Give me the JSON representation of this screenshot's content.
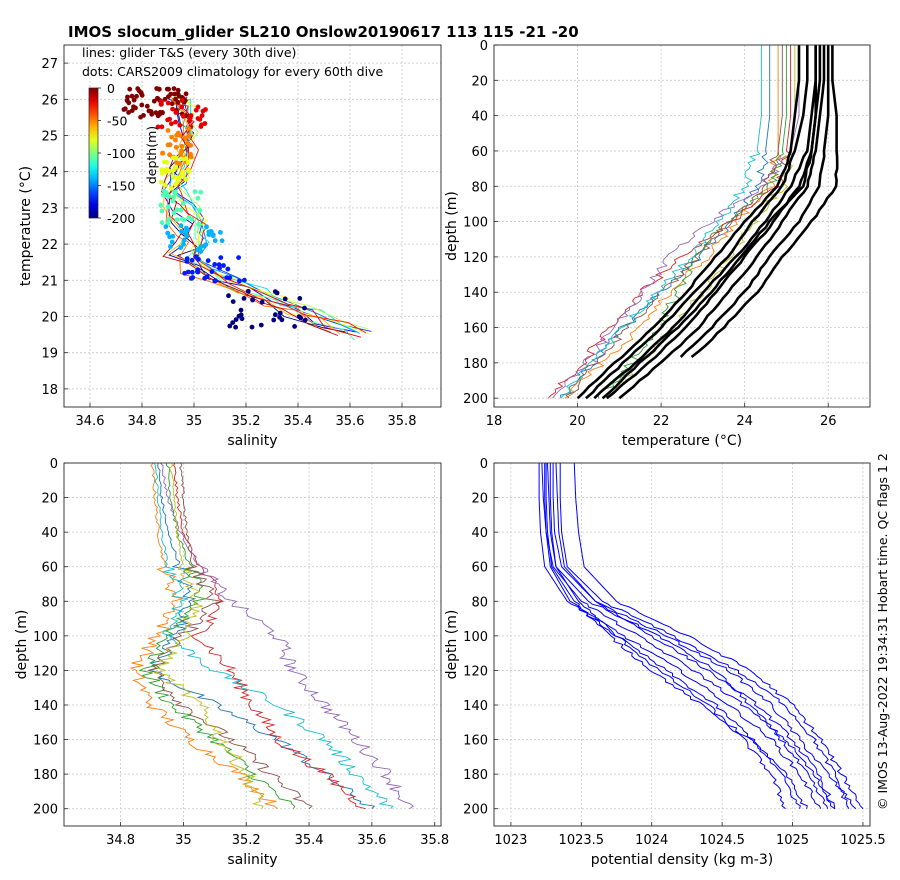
{
  "figure": {
    "title": "IMOS slocum_glider SL210 Onslow20190617 113  115  -21  -20",
    "side_note": "© IMOS 13-Aug-2022 19:34:31 Hobart time. QC flags 1  2"
  },
  "chart_data": [
    {
      "id": "ts",
      "type": "scatter",
      "xlabel": "salinity",
      "ylabel": "temperature (°C)",
      "xlim": [
        34.5,
        35.95
      ],
      "ylim": [
        17.5,
        27.5
      ],
      "xticks": [
        34.6,
        34.8,
        35,
        35.2,
        35.4,
        35.6,
        35.8
      ],
      "xtick_labels": [
        "34.6",
        "34.8",
        "35",
        "35.2",
        "35.4",
        "35.6",
        "35.8"
      ],
      "yticks": [
        18,
        19,
        20,
        21,
        22,
        23,
        24,
        25,
        26,
        27
      ],
      "ytick_labels": [
        "18",
        "19",
        "20",
        "21",
        "22",
        "23",
        "24",
        "25",
        "26",
        "27"
      ],
      "grid": true,
      "annotations": [
        "lines: glider T&S (every 30th dive)",
        "dots: CARS2009 climatology for every 60th dive"
      ],
      "colorbar": {
        "label": "depth(m)",
        "ticks": [
          0,
          -50,
          -100,
          -150,
          -200
        ],
        "tick_labels": [
          "0",
          "-50",
          "-100",
          "-150",
          "-200"
        ],
        "colormap": "jet"
      },
      "line_series_depth": [
        -200,
        -180,
        -165,
        -150,
        -130,
        -110,
        -90,
        -75,
        -60,
        -45,
        -30,
        -20,
        -10
      ],
      "salinity_ts_anchors": [
        [
          0,
          34.93,
          26.0
        ],
        [
          10,
          34.95,
          25.9
        ],
        [
          20,
          34.97,
          25.6
        ],
        [
          30,
          34.98,
          25.3
        ],
        [
          40,
          34.98,
          25.0
        ],
        [
          50,
          34.97,
          24.6
        ],
        [
          60,
          34.95,
          24.2
        ],
        [
          70,
          34.93,
          23.8
        ],
        [
          80,
          34.92,
          23.4
        ],
        [
          90,
          34.94,
          23.0
        ],
        [
          100,
          34.97,
          22.6
        ],
        [
          110,
          34.99,
          22.3
        ],
        [
          120,
          35.0,
          22.0
        ],
        [
          130,
          34.95,
          21.7
        ],
        [
          140,
          35.02,
          21.3
        ],
        [
          150,
          35.1,
          21.0
        ],
        [
          160,
          35.2,
          20.7
        ],
        [
          170,
          35.3,
          20.4
        ],
        [
          180,
          35.4,
          20.1
        ],
        [
          190,
          35.5,
          19.8
        ],
        [
          200,
          35.6,
          19.5
        ]
      ],
      "dots_clusters": [
        {
          "depth": 0,
          "s_center": 34.85,
          "t_center": 25.9,
          "s_spread": 0.12,
          "t_spread": 0.4,
          "n": 60
        },
        {
          "depth": -20,
          "s_center": 34.95,
          "t_center": 25.6,
          "s_spread": 0.1,
          "t_spread": 0.4,
          "n": 30
        },
        {
          "depth": -50,
          "s_center": 34.93,
          "t_center": 24.7,
          "s_spread": 0.06,
          "t_spread": 0.5,
          "n": 30
        },
        {
          "depth": -80,
          "s_center": 34.93,
          "t_center": 23.9,
          "s_spread": 0.06,
          "t_spread": 0.5,
          "n": 30
        },
        {
          "depth": -110,
          "s_center": 34.95,
          "t_center": 23.0,
          "s_spread": 0.08,
          "t_spread": 0.5,
          "n": 30
        },
        {
          "depth": -140,
          "s_center": 35.0,
          "t_center": 22.2,
          "s_spread": 0.12,
          "t_spread": 0.4,
          "n": 30
        },
        {
          "depth": -170,
          "s_center": 35.08,
          "t_center": 21.3,
          "s_spread": 0.12,
          "t_spread": 0.4,
          "n": 30
        },
        {
          "depth": -200,
          "s_center": 35.28,
          "t_center": 20.2,
          "s_spread": 0.15,
          "t_spread": 0.5,
          "n": 30
        }
      ]
    },
    {
      "id": "temp",
      "type": "line",
      "xlabel": "temperature (°C)",
      "ylabel": "depth (m)",
      "xlim": [
        18,
        27
      ],
      "ylim": [
        0,
        205
      ],
      "y_reversed": true,
      "xticks": [
        18,
        20,
        22,
        24,
        26
      ],
      "xtick_labels": [
        "18",
        "20",
        "22",
        "24",
        "26"
      ],
      "yticks": [
        0,
        20,
        40,
        60,
        80,
        100,
        120,
        140,
        160,
        180,
        200
      ],
      "ytick_labels": [
        "0",
        "20",
        "40",
        "60",
        "80",
        "100",
        "120",
        "140",
        "160",
        "180",
        "200"
      ],
      "grid": true,
      "depth_levels": [
        0,
        20,
        40,
        60,
        80,
        100,
        120,
        140,
        160,
        180,
        200
      ],
      "climatology_series": [
        {
          "values": [
            25.3,
            25.3,
            25.2,
            25.1,
            24.8,
            24.0,
            23.3,
            22.6,
            21.8,
            20.9,
            20.0
          ]
        },
        {
          "values": [
            25.5,
            25.5,
            25.4,
            25.2,
            24.9,
            24.2,
            23.6,
            22.8,
            22.0,
            21.1,
            20.2
          ]
        },
        {
          "values": [
            25.7,
            25.7,
            25.6,
            25.5,
            25.1,
            24.5,
            23.8,
            23.0,
            22.3,
            21.4,
            20.4
          ]
        },
        {
          "values": [
            25.8,
            25.8,
            25.7,
            25.6,
            25.3,
            24.7,
            24.0,
            23.3,
            22.6,
            21.7,
            20.7
          ]
        },
        {
          "values": [
            25.9,
            25.9,
            25.8,
            25.7,
            25.5,
            24.9,
            24.3,
            23.6,
            22.9,
            22.0,
            21.0
          ]
        },
        {
          "values": [
            26.0,
            26.0,
            26.0,
            25.9,
            25.8,
            25.3,
            24.6,
            24.0,
            23.2,
            22.3,
            null
          ]
        },
        {
          "values": [
            26.1,
            26.1,
            26.2,
            26.2,
            26.2,
            25.6,
            24.9,
            24.3,
            23.5,
            22.6,
            null
          ]
        },
        {
          "values": [
            25.7,
            25.7,
            25.7,
            25.6,
            25.4,
            24.6,
            23.9,
            23.2,
            22.4,
            21.5,
            20.6
          ]
        }
      ],
      "glider_series": [
        {
          "color": "#1f77b4",
          "values": [
            24.6,
            24.6,
            24.6,
            24.5,
            24.3,
            23.7,
            22.9,
            22.0,
            21.1,
            20.4,
            19.6
          ]
        },
        {
          "color": "#ff7f0e",
          "values": [
            24.8,
            24.8,
            24.8,
            24.8,
            24.6,
            23.8,
            23.1,
            22.2,
            21.5,
            20.6,
            19.7
          ]
        },
        {
          "color": "#2ca02c",
          "values": [
            25.0,
            25.0,
            25.0,
            24.9,
            24.6,
            23.6,
            22.8,
            22.4,
            21.9,
            21.3,
            20.5
          ]
        },
        {
          "color": "#d62728",
          "values": [
            25.1,
            25.1,
            25.1,
            25.0,
            24.8,
            23.7,
            22.5,
            21.5,
            20.8,
            20.1,
            19.3
          ]
        },
        {
          "color": "#9467bd",
          "values": [
            25.3,
            25.3,
            25.3,
            25.1,
            24.4,
            23.2,
            22.2,
            21.6,
            20.9,
            20.2,
            19.4
          ]
        },
        {
          "color": "#8c564b",
          "values": [
            24.9,
            24.9,
            24.9,
            24.8,
            24.5,
            23.6,
            22.9,
            22.0,
            21.2,
            20.4,
            19.8
          ]
        },
        {
          "color": "#17becf",
          "values": [
            24.4,
            24.4,
            24.4,
            24.3,
            24.0,
            23.4,
            22.7,
            21.9,
            21.1,
            20.3,
            19.6
          ]
        },
        {
          "color": "#bcbd22",
          "values": [
            25.2,
            25.2,
            25.2,
            25.1,
            24.9,
            24.2,
            23.6,
            23.0,
            22.3,
            21.5,
            20.7
          ]
        }
      ]
    },
    {
      "id": "salt",
      "type": "line",
      "xlabel": "salinity",
      "ylabel": "depth (m)",
      "xlim": [
        34.62,
        35.82
      ],
      "ylim": [
        0,
        210
      ],
      "y_reversed": true,
      "xticks": [
        34.8,
        35,
        35.2,
        35.4,
        35.6,
        35.8
      ],
      "xtick_labels": [
        "34.8",
        "35",
        "35.2",
        "35.4",
        "35.6",
        "35.8"
      ],
      "yticks": [
        0,
        20,
        40,
        60,
        80,
        100,
        120,
        140,
        160,
        180,
        200
      ],
      "ytick_labels": [
        "0",
        "20",
        "40",
        "60",
        "80",
        "100",
        "120",
        "140",
        "160",
        "180",
        "200"
      ],
      "grid": true,
      "depth_levels": [
        0,
        20,
        40,
        60,
        80,
        100,
        120,
        140,
        160,
        180,
        200
      ],
      "glider_series": [
        {
          "color": "#1f77b4",
          "values": [
            34.92,
            34.93,
            34.95,
            34.99,
            35.02,
            34.98,
            34.9,
            35.1,
            35.3,
            35.45,
            35.6
          ]
        },
        {
          "color": "#ff7f0e",
          "values": [
            34.9,
            34.91,
            34.92,
            34.94,
            34.98,
            34.92,
            34.84,
            34.9,
            35.02,
            35.18,
            35.3
          ]
        },
        {
          "color": "#2ca02c",
          "values": [
            34.95,
            34.96,
            34.98,
            35.02,
            35.05,
            34.95,
            34.88,
            34.96,
            35.1,
            35.22,
            35.35
          ]
        },
        {
          "color": "#d62728",
          "values": [
            34.97,
            34.98,
            35.0,
            35.05,
            35.12,
            35.05,
            35.15,
            35.22,
            35.3,
            35.45,
            35.58
          ]
        },
        {
          "color": "#9467bd",
          "values": [
            34.93,
            34.95,
            34.99,
            35.05,
            35.15,
            35.3,
            35.35,
            35.45,
            35.55,
            35.65,
            35.72
          ]
        },
        {
          "color": "#8c564b",
          "values": [
            34.99,
            35.0,
            35.01,
            35.03,
            35.1,
            35.0,
            34.9,
            35.0,
            35.15,
            35.28,
            35.4
          ]
        },
        {
          "color": "#17becf",
          "values": [
            34.91,
            34.92,
            34.93,
            34.95,
            35.0,
            34.95,
            35.1,
            35.3,
            35.45,
            35.55,
            35.66
          ]
        },
        {
          "color": "#bcbd22",
          "values": [
            34.96,
            34.97,
            34.98,
            35.0,
            35.05,
            35.0,
            34.92,
            35.05,
            35.12,
            35.2,
            35.25
          ]
        }
      ]
    },
    {
      "id": "dens",
      "type": "line",
      "xlabel": "potential density (kg m-3)",
      "ylabel": "depth (m)",
      "xlim": [
        1022.88,
        1025.55
      ],
      "ylim": [
        0,
        210
      ],
      "y_reversed": true,
      "xticks": [
        1023,
        1023.5,
        1024,
        1024.5,
        1025,
        1025.5
      ],
      "xtick_labels": [
        "1023",
        "1023.5",
        "1024",
        "1024.5",
        "1025",
        "1025.5"
      ],
      "yticks": [
        0,
        20,
        40,
        60,
        80,
        100,
        120,
        140,
        160,
        180,
        200
      ],
      "ytick_labels": [
        "0",
        "20",
        "40",
        "60",
        "80",
        "100",
        "120",
        "140",
        "160",
        "180",
        "200"
      ],
      "grid": true,
      "line_color": "#0000ff",
      "depth_levels": [
        0,
        20,
        40,
        60,
        80,
        100,
        120,
        140,
        160,
        180,
        200
      ],
      "glider_series": [
        {
          "values": [
            1023.2,
            1023.2,
            1023.21,
            1023.24,
            1023.4,
            1023.8,
            1024.2,
            1024.55,
            1024.85,
            1025.05,
            1025.2
          ]
        },
        {
          "values": [
            1023.22,
            1023.23,
            1023.25,
            1023.3,
            1023.5,
            1023.9,
            1024.3,
            1024.65,
            1024.95,
            1025.15,
            1025.3
          ]
        },
        {
          "values": [
            1023.25,
            1023.25,
            1023.26,
            1023.29,
            1023.45,
            1023.7,
            1024.0,
            1024.35,
            1024.7,
            1024.95,
            1025.1
          ]
        },
        {
          "values": [
            1023.3,
            1023.3,
            1023.31,
            1023.36,
            1023.6,
            1024.1,
            1024.55,
            1024.85,
            1025.05,
            1025.25,
            1025.45
          ]
        },
        {
          "values": [
            1023.28,
            1023.28,
            1023.29,
            1023.32,
            1023.55,
            1024.05,
            1024.45,
            1024.7,
            1024.92,
            1025.1,
            1025.25
          ]
        },
        {
          "values": [
            1023.35,
            1023.35,
            1023.36,
            1023.4,
            1023.65,
            1024.15,
            1024.6,
            1024.95,
            1025.15,
            1025.3,
            1025.4
          ]
        },
        {
          "values": [
            1023.26,
            1023.27,
            1023.28,
            1023.32,
            1023.48,
            1023.75,
            1024.05,
            1024.4,
            1024.65,
            1024.85,
            1024.95
          ]
        },
        {
          "values": [
            1023.45,
            1023.46,
            1023.48,
            1023.52,
            1023.75,
            1024.25,
            1024.7,
            1025.0,
            1025.2,
            1025.35,
            1025.5
          ]
        },
        {
          "values": [
            1023.32,
            1023.33,
            1023.34,
            1023.38,
            1023.6,
            1024.0,
            1024.4,
            1024.75,
            1025.0,
            1025.18,
            1025.3
          ]
        },
        {
          "values": [
            1023.24,
            1023.24,
            1023.25,
            1023.28,
            1023.42,
            1023.75,
            1024.1,
            1024.45,
            1024.72,
            1024.92,
            1025.05
          ]
        }
      ]
    }
  ]
}
